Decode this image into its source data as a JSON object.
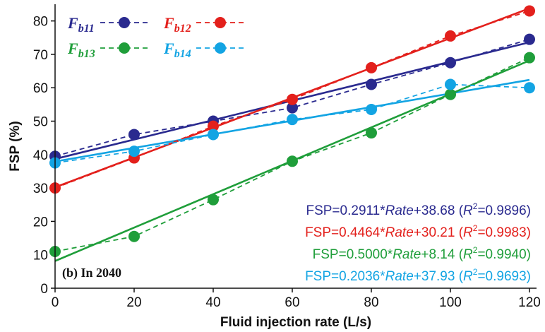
{
  "chart_data": {
    "type": "scatter",
    "xlabel": "Fluid injection rate (L/s)",
    "ylabel": "FSP (%)",
    "xlim": [
      0,
      120
    ],
    "ylim": [
      0,
      85
    ],
    "xticks": [
      0,
      20,
      40,
      60,
      80,
      100,
      120
    ],
    "yticks": [
      0,
      10,
      20,
      30,
      40,
      50,
      60,
      70,
      80
    ],
    "x": [
      0,
      20,
      40,
      60,
      80,
      100,
      120
    ],
    "panel_label": "(b) In 2040",
    "series": [
      {
        "name": "F",
        "subscript": "b11",
        "color": "#2a2a8f",
        "values": [
          39.5,
          46.0,
          50.0,
          54.0,
          61.0,
          67.5,
          74.5
        ],
        "fit": {
          "slope": 0.2911,
          "intercept": 38.68
        },
        "equation": {
          "prefix": "FSP=0.2911*",
          "var": "Rate",
          "mid": "+38.68 (",
          "r": "R",
          "sup": "2",
          "suffix": "=0.9896)"
        }
      },
      {
        "name": "F",
        "subscript": "b12",
        "color": "#e3201c",
        "values": [
          30.0,
          39.0,
          48.5,
          56.5,
          66.0,
          75.5,
          83.0
        ],
        "fit": {
          "slope": 0.4464,
          "intercept": 30.21
        },
        "equation": {
          "prefix": "FSP=0.4464*",
          "var": "Rate",
          "mid": "+30.21 (",
          "r": "R",
          "sup": "2",
          "suffix": "=0.9983)"
        }
      },
      {
        "name": "F",
        "subscript": "b13",
        "color": "#1f9e3a",
        "values": [
          11.0,
          15.5,
          26.5,
          38.0,
          46.5,
          58.0,
          69.0
        ],
        "fit": {
          "slope": 0.5,
          "intercept": 8.14
        },
        "equation": {
          "prefix": "FSP=0.5000*",
          "var": "Rate",
          "mid": "+8.14 (",
          "r": "R",
          "sup": "2",
          "suffix": "=0.9940)"
        }
      },
      {
        "name": "F",
        "subscript": "b14",
        "color": "#13a4e3",
        "values": [
          37.5,
          41.0,
          46.0,
          50.5,
          53.5,
          61.0,
          60.0
        ],
        "fit": {
          "slope": 0.2036,
          "intercept": 37.93
        },
        "equation": {
          "prefix": "FSP=0.2036*",
          "var": "Rate",
          "mid": "+37.93 (",
          "r": "R",
          "sup": "2",
          "suffix": "=0.9693)"
        }
      }
    ]
  }
}
